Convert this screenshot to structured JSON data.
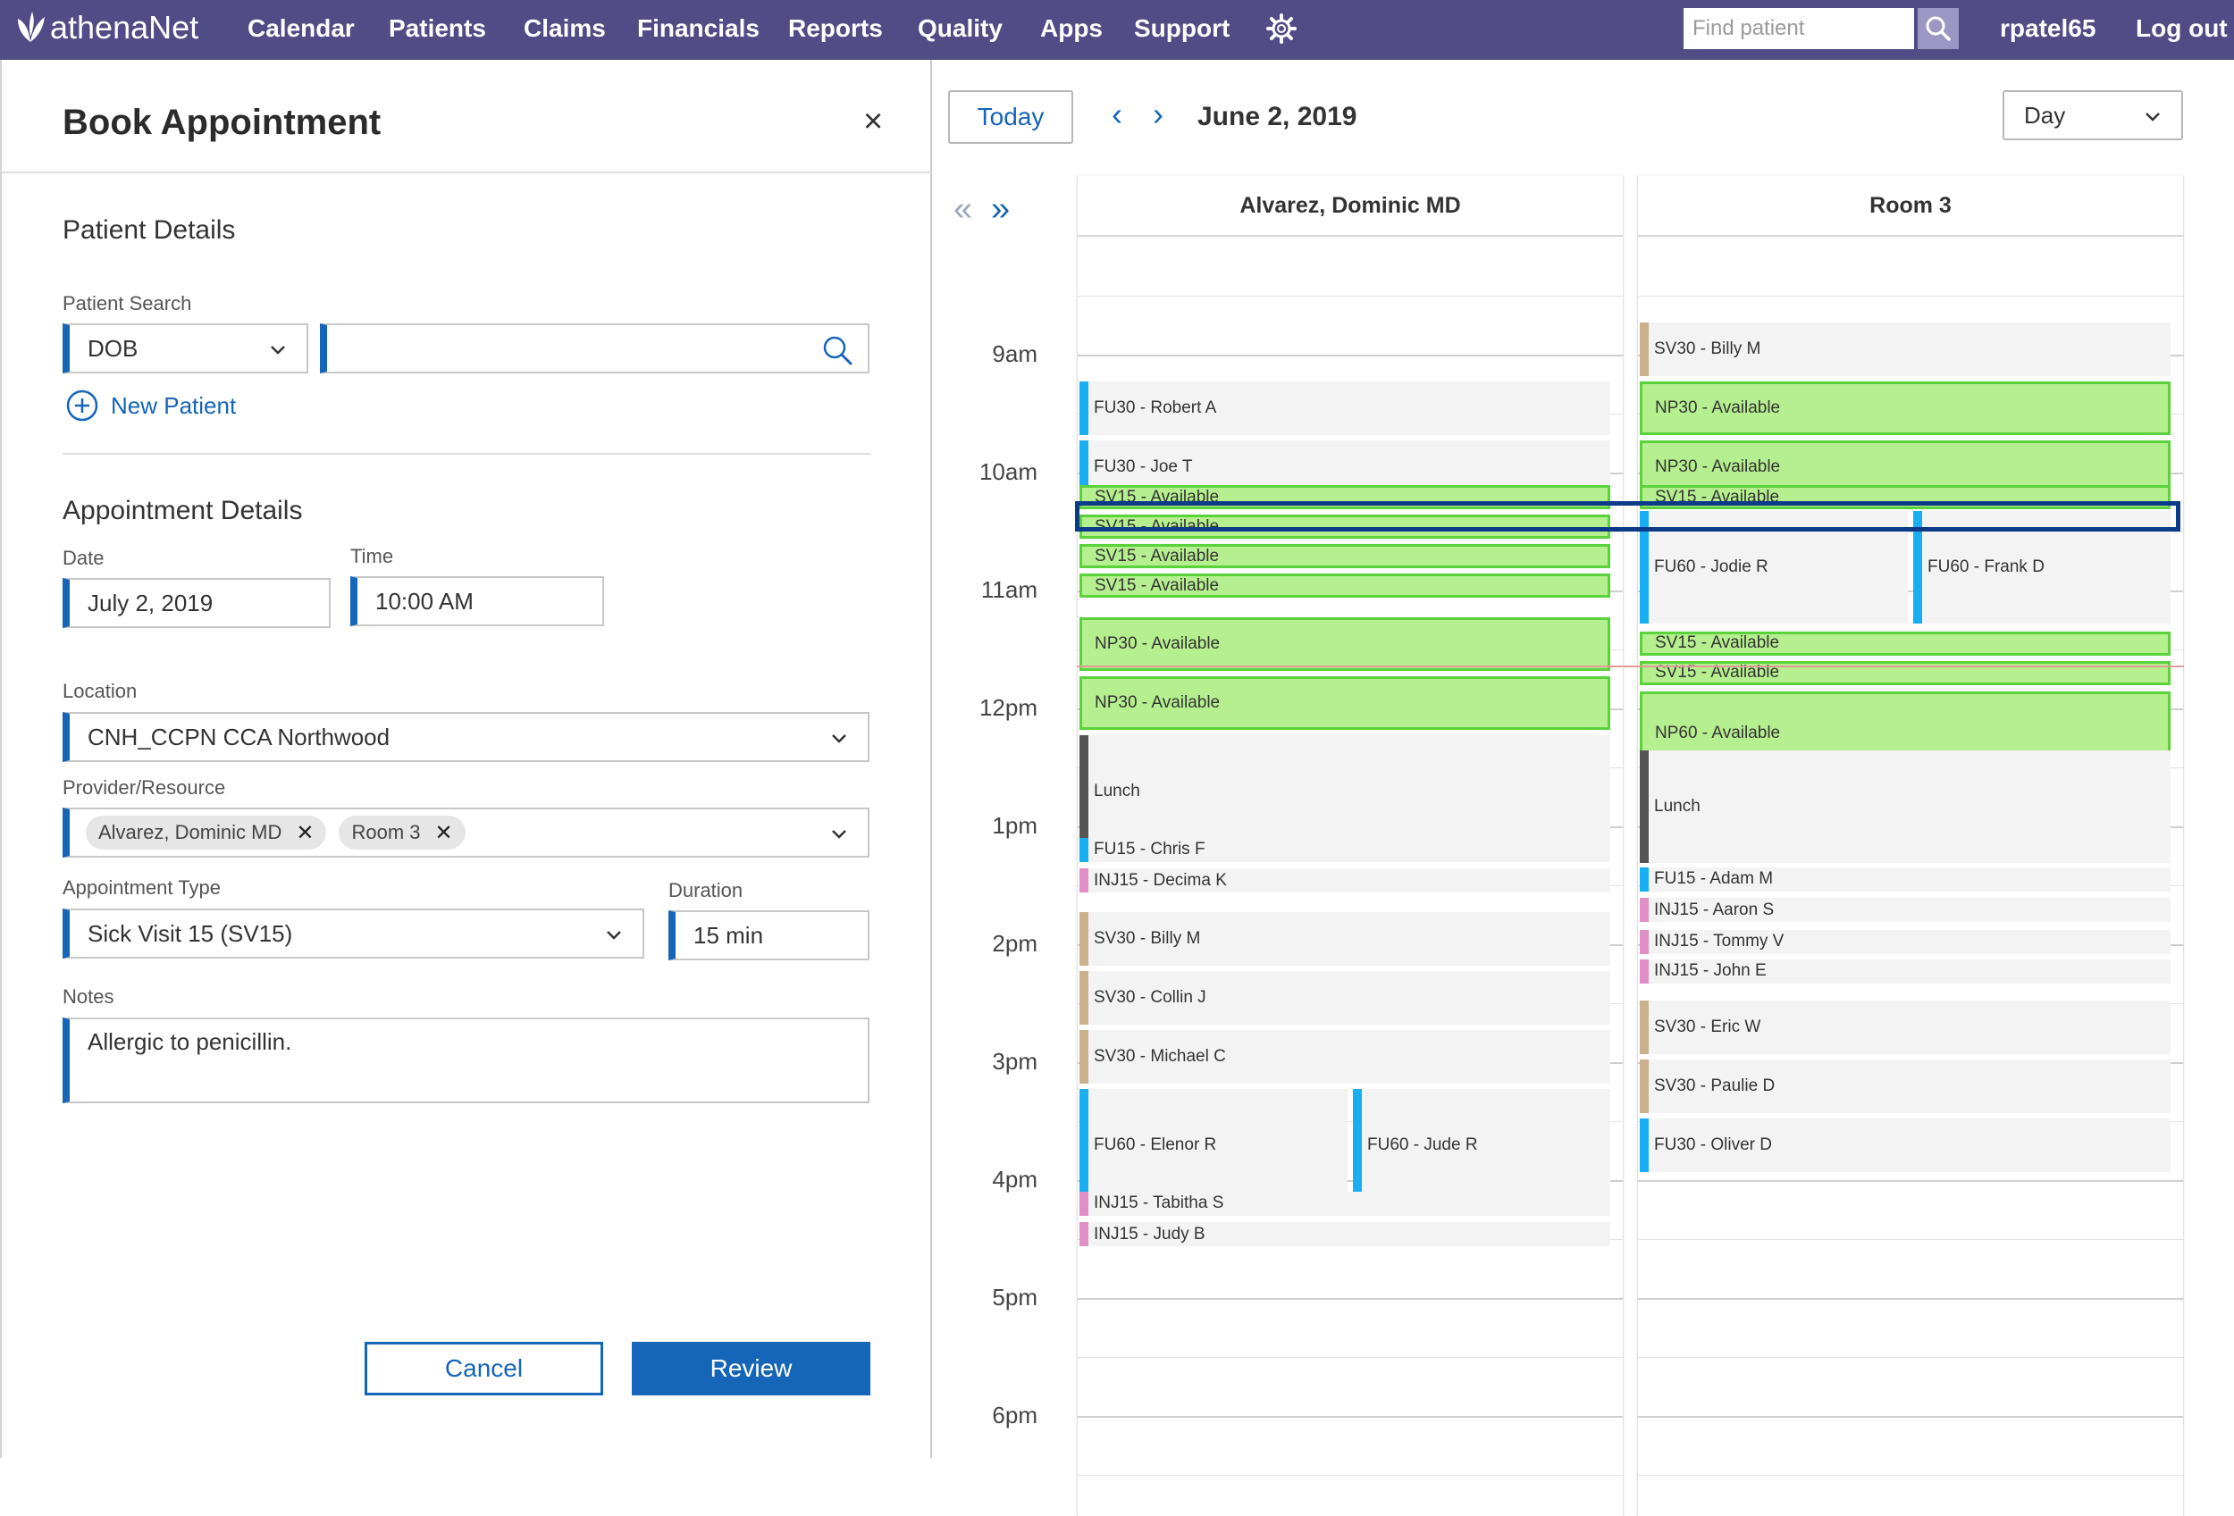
{
  "nav": {
    "logo": "athenaNet",
    "items": [
      "Calendar",
      "Patients",
      "Claims",
      "Financials",
      "Reports",
      "Quality",
      "Apps",
      "Support"
    ],
    "search_placeholder": "Find patient",
    "username": "rpatel65",
    "logout": "Log out"
  },
  "panel": {
    "title": "Book Appointment",
    "close": "×",
    "patient_details": "Patient Details",
    "patient_search_label": "Patient Search",
    "search_type": "DOB",
    "search_value": "",
    "new_patient": "New Patient",
    "appointment_details": "Appointment Details",
    "date_label": "Date",
    "date_value": "July 2, 2019",
    "time_label": "Time",
    "time_value": "10:00 AM",
    "location_label": "Location",
    "location_value": "CNH_CCPN CCA Northwood",
    "provider_label": "Provider/Resource",
    "providers": [
      "Alvarez, Dominic MD",
      "Room 3"
    ],
    "appt_type_label": "Appointment Type",
    "appt_type_value": "Sick Visit 15 (SV15)",
    "duration_label": "Duration",
    "duration_value": "15 min",
    "notes_label": "Notes",
    "notes_value": "Allergic to penicillin.",
    "cancel": "Cancel",
    "review": "Review"
  },
  "calendar": {
    "today": "Today",
    "date": "June 2, 2019",
    "view": "Day",
    "hours": [
      "9am",
      "10am",
      "11am",
      "12pm",
      "1pm",
      "2pm",
      "3pm",
      "4pm",
      "5pm",
      "6pm"
    ],
    "columns": [
      {
        "name": "Alvarez, Dominic MD",
        "appointments": [
          {
            "label": "FU30 - Robert A",
            "type": "FU"
          },
          {
            "label": "FU30 - Joe T",
            "type": "FU"
          },
          {
            "label": "SV15 - Available",
            "type": "avail"
          },
          {
            "label": "SV15 - Available",
            "type": "avail"
          },
          {
            "label": "SV15 - Available",
            "type": "avail"
          },
          {
            "label": "SV15 - Available",
            "type": "avail"
          },
          {
            "label": "NP30 - Available",
            "type": "avail"
          },
          {
            "label": "NP30 - Available",
            "type": "avail"
          },
          {
            "label": "Lunch",
            "type": "lunch"
          },
          {
            "label": "FU15 - Chris F",
            "type": "FU"
          },
          {
            "label": "INJ15 - Decima K",
            "type": "INJ"
          },
          {
            "label": "SV30 - Billy M",
            "type": "SV"
          },
          {
            "label": "SV30 - Collin J",
            "type": "SV"
          },
          {
            "label": "SV30 - Michael C",
            "type": "SV"
          },
          {
            "label": "FU60 - Elenor R",
            "type": "FU"
          },
          {
            "label": "FU60 - Jude R",
            "type": "FU"
          },
          {
            "label": "INJ15 - Tabitha S",
            "type": "INJ"
          },
          {
            "label": "INJ15 - Judy B",
            "type": "INJ"
          }
        ]
      },
      {
        "name": "Room 3",
        "appointments": [
          {
            "label": "SV30 - Billy M",
            "type": "SV"
          },
          {
            "label": "NP30 - Available",
            "type": "avail"
          },
          {
            "label": "NP30 - Available",
            "type": "avail"
          },
          {
            "label": "SV15 - Available",
            "type": "avail"
          },
          {
            "label": "FU60 - Jodie R",
            "type": "FU"
          },
          {
            "label": "FU60 - Frank D",
            "type": "FU"
          },
          {
            "label": "SV15 - Available",
            "type": "avail"
          },
          {
            "label": "SV15 - Available",
            "type": "avail"
          },
          {
            "label": "NP60 - Available",
            "type": "avail"
          },
          {
            "label": "Lunch",
            "type": "lunch"
          },
          {
            "label": "FU15 - Adam M",
            "type": "FU"
          },
          {
            "label": "INJ15 - Aaron S",
            "type": "INJ"
          },
          {
            "label": "INJ15 - Tommy V",
            "type": "INJ"
          },
          {
            "label": "INJ15 - John E",
            "type": "INJ"
          },
          {
            "label": "SV30 - Eric W",
            "type": "SV"
          },
          {
            "label": "SV30 - Paulie D",
            "type": "SV"
          },
          {
            "label": "FU30 - Oliver D",
            "type": "FU"
          }
        ]
      }
    ]
  },
  "colors": {
    "nav_bg": "#514B86",
    "accent": "#1565b8",
    "available_fill": "#b6ef8f",
    "available_border": "#5ad23b",
    "fu": "#18aef2",
    "inj": "#e08fc6",
    "sv": "#cbb08e",
    "lunch": "#555555",
    "selected": "#0b3b88"
  }
}
